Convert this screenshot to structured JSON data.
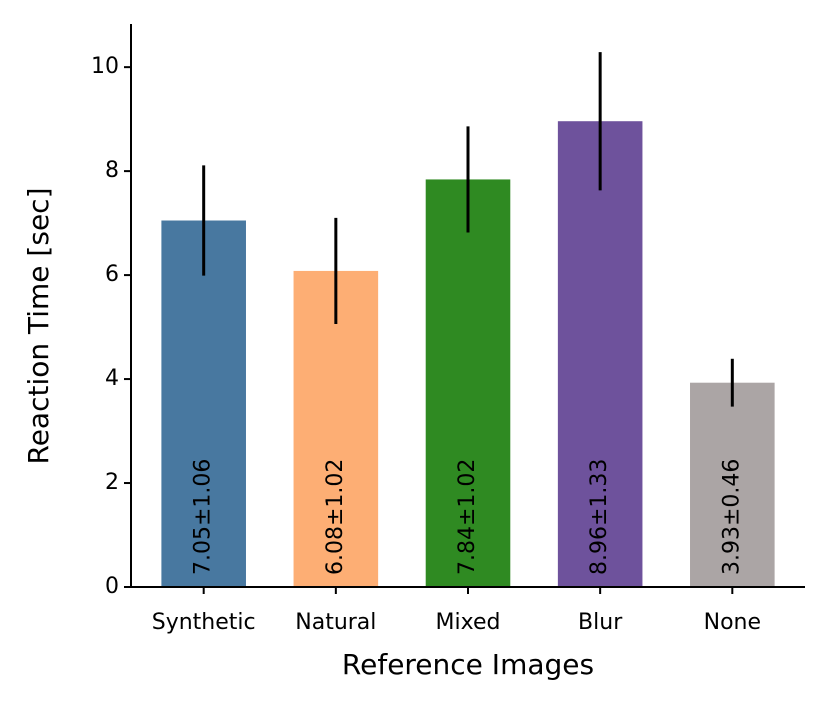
{
  "chart_data": {
    "type": "bar",
    "x_label": "Reference Images",
    "y_label": "Reaction Time [sec]",
    "categories": [
      "Synthetic",
      "Natural",
      "Mixed",
      "Blur",
      "None"
    ],
    "values": [
      7.05,
      6.08,
      7.84,
      8.96,
      3.93
    ],
    "errors": [
      1.06,
      1.02,
      1.02,
      1.33,
      0.46
    ],
    "value_labels": [
      "7.05±1.06",
      "6.08±1.02",
      "7.84±1.02",
      "8.96±1.33",
      "3.93±0.46"
    ],
    "colors": [
      "#4878a0",
      "#fdae74",
      "#2f8a22",
      "#6e529c",
      "#aba5a5"
    ],
    "error_color": "#000000",
    "ylim": [
      0,
      10.83
    ],
    "yticks": [
      0,
      2,
      4,
      6,
      8,
      10
    ],
    "grid": false
  }
}
